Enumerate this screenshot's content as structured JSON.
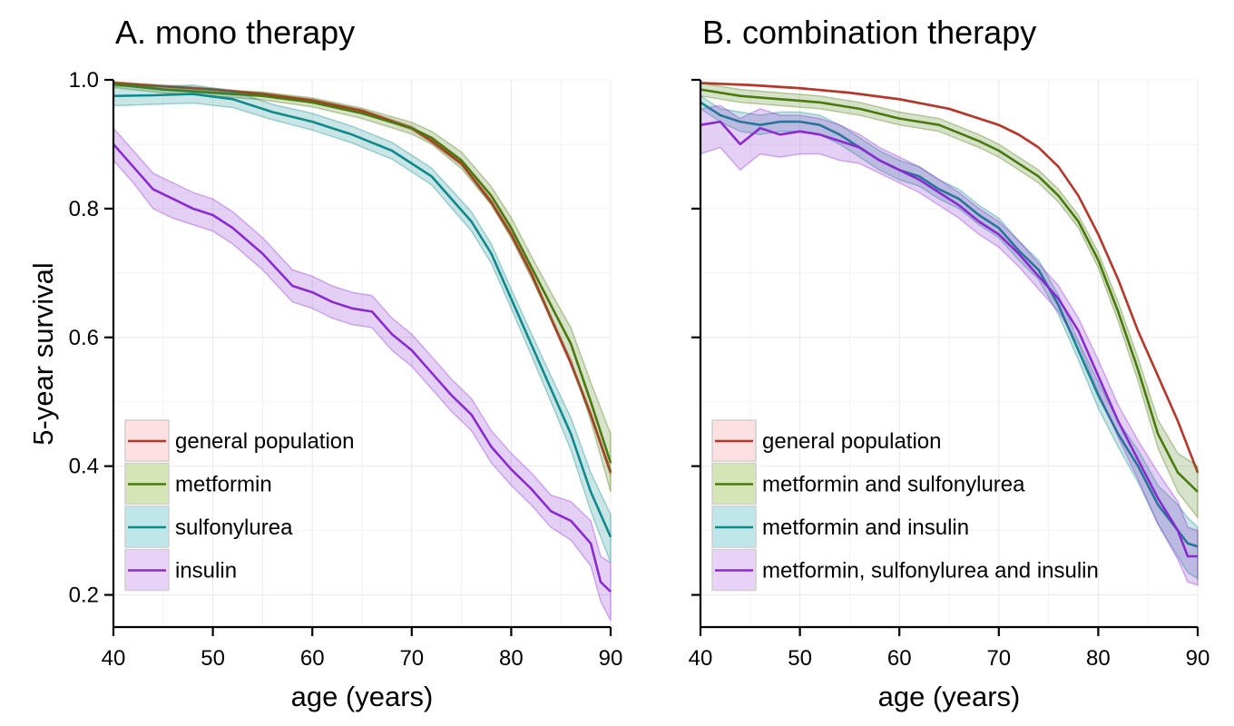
{
  "ylabel": "5-year survival",
  "chart_data": [
    {
      "type": "line",
      "title": "A. mono therapy",
      "xlabel": "age (years)",
      "ylabel": "5-year survival",
      "xlim": [
        40,
        90
      ],
      "ylim": [
        0.15,
        1.0
      ],
      "xticks": [
        40,
        50,
        60,
        70,
        80,
        90
      ],
      "yticks": [
        0.2,
        0.4,
        0.6,
        0.8,
        1.0
      ],
      "ytick_labels": [
        "0.2",
        "0.4",
        "0.6",
        "0.8",
        "1.0"
      ],
      "grid": true,
      "legend_position": "bottom-left",
      "series": [
        {
          "name": "general population",
          "color": "#B5372A",
          "fill": "#FDE0E0",
          "x": [
            40,
            45,
            50,
            55,
            60,
            65,
            70,
            72,
            75,
            78,
            80,
            82,
            84,
            86,
            88,
            90
          ],
          "y": [
            0.995,
            0.99,
            0.985,
            0.978,
            0.968,
            0.952,
            0.925,
            0.905,
            0.87,
            0.81,
            0.76,
            0.7,
            0.63,
            0.56,
            0.48,
            0.39
          ],
          "lower": [
            0.993,
            0.988,
            0.983,
            0.976,
            0.966,
            0.95,
            0.922,
            0.902,
            0.867,
            0.806,
            0.756,
            0.696,
            0.626,
            0.556,
            0.476,
            0.386
          ],
          "upper": [
            0.997,
            0.992,
            0.987,
            0.98,
            0.97,
            0.954,
            0.928,
            0.908,
            0.873,
            0.814,
            0.764,
            0.704,
            0.634,
            0.564,
            0.484,
            0.394
          ]
        },
        {
          "name": "metformin",
          "color": "#4A7A0C",
          "fill": "#D6E5B5",
          "x": [
            40,
            45,
            50,
            55,
            60,
            65,
            70,
            72,
            75,
            78,
            80,
            82,
            84,
            86,
            88,
            90
          ],
          "y": [
            0.993,
            0.985,
            0.98,
            0.975,
            0.965,
            0.948,
            0.925,
            0.91,
            0.875,
            0.82,
            0.77,
            0.71,
            0.65,
            0.59,
            0.5,
            0.405
          ],
          "lower": [
            0.988,
            0.98,
            0.975,
            0.969,
            0.958,
            0.94,
            0.916,
            0.9,
            0.862,
            0.806,
            0.754,
            0.693,
            0.63,
            0.565,
            0.47,
            0.36
          ],
          "upper": [
            0.997,
            0.99,
            0.985,
            0.981,
            0.972,
            0.956,
            0.934,
            0.92,
            0.888,
            0.834,
            0.786,
            0.727,
            0.67,
            0.615,
            0.53,
            0.45
          ]
        },
        {
          "name": "sulfonylurea",
          "color": "#0F8A8C",
          "fill": "#BFE7EA",
          "x": [
            40,
            44,
            48,
            52,
            56,
            60,
            64,
            68,
            72,
            76,
            78,
            80,
            82,
            84,
            86,
            88,
            90
          ],
          "y": [
            0.975,
            0.976,
            0.978,
            0.97,
            0.95,
            0.935,
            0.915,
            0.89,
            0.85,
            0.78,
            0.73,
            0.66,
            0.59,
            0.52,
            0.45,
            0.36,
            0.29
          ],
          "lower": [
            0.96,
            0.962,
            0.964,
            0.957,
            0.938,
            0.922,
            0.902,
            0.877,
            0.837,
            0.765,
            0.715,
            0.645,
            0.573,
            0.5,
            0.425,
            0.33,
            0.25
          ],
          "upper": [
            0.99,
            0.99,
            0.992,
            0.983,
            0.962,
            0.948,
            0.928,
            0.903,
            0.863,
            0.795,
            0.745,
            0.675,
            0.607,
            0.54,
            0.475,
            0.39,
            0.325
          ]
        },
        {
          "name": "insulin",
          "color": "#8A2BD0",
          "fill": "#E9D2F7",
          "x": [
            40,
            42,
            44,
            46,
            48,
            50,
            52,
            55,
            58,
            60,
            62,
            64,
            66,
            68,
            70,
            72,
            74,
            76,
            78,
            80,
            82,
            84,
            86,
            88,
            89,
            90
          ],
          "y": [
            0.9,
            0.865,
            0.83,
            0.815,
            0.8,
            0.79,
            0.77,
            0.73,
            0.68,
            0.67,
            0.655,
            0.645,
            0.64,
            0.605,
            0.58,
            0.545,
            0.51,
            0.48,
            0.43,
            0.395,
            0.365,
            0.33,
            0.315,
            0.28,
            0.22,
            0.205
          ],
          "lower": [
            0.875,
            0.84,
            0.8,
            0.785,
            0.775,
            0.765,
            0.745,
            0.705,
            0.655,
            0.645,
            0.63,
            0.62,
            0.615,
            0.58,
            0.555,
            0.52,
            0.485,
            0.455,
            0.405,
            0.37,
            0.34,
            0.305,
            0.285,
            0.245,
            0.19,
            0.16
          ],
          "upper": [
            0.925,
            0.89,
            0.855,
            0.84,
            0.825,
            0.815,
            0.795,
            0.755,
            0.705,
            0.695,
            0.68,
            0.67,
            0.665,
            0.63,
            0.605,
            0.57,
            0.535,
            0.505,
            0.455,
            0.42,
            0.39,
            0.355,
            0.345,
            0.315,
            0.26,
            0.25
          ]
        }
      ]
    },
    {
      "type": "line",
      "title": "B. combination therapy",
      "xlabel": "age (years)",
      "ylabel": "",
      "xlim": [
        40,
        90
      ],
      "ylim": [
        0.15,
        1.0
      ],
      "xticks": [
        40,
        50,
        60,
        70,
        80,
        90
      ],
      "yticks": [
        0.2,
        0.4,
        0.6,
        0.8,
        1.0
      ],
      "ytick_labels": [],
      "grid": true,
      "legend_position": "bottom-left",
      "series": [
        {
          "name": "general population",
          "color": "#B5372A",
          "fill": "#FDE0E0",
          "x": [
            40,
            45,
            50,
            55,
            60,
            65,
            70,
            72,
            74,
            76,
            78,
            80,
            82,
            84,
            86,
            88,
            90
          ],
          "y": [
            0.995,
            0.992,
            0.987,
            0.98,
            0.97,
            0.955,
            0.93,
            0.915,
            0.895,
            0.865,
            0.82,
            0.76,
            0.69,
            0.61,
            0.54,
            0.47,
            0.39
          ],
          "lower": [
            0.994,
            0.991,
            0.986,
            0.979,
            0.969,
            0.954,
            0.929,
            0.914,
            0.894,
            0.864,
            0.819,
            0.759,
            0.689,
            0.609,
            0.539,
            0.469,
            0.389
          ],
          "upper": [
            0.996,
            0.993,
            0.988,
            0.981,
            0.971,
            0.956,
            0.931,
            0.916,
            0.896,
            0.866,
            0.821,
            0.761,
            0.691,
            0.611,
            0.541,
            0.471,
            0.391
          ]
        },
        {
          "name": "metformin and sulfonylurea",
          "color": "#4A7A0C",
          "fill": "#D6E5B5",
          "x": [
            40,
            44,
            48,
            52,
            56,
            60,
            64,
            68,
            70,
            72,
            74,
            76,
            78,
            80,
            82,
            84,
            86,
            88,
            90
          ],
          "y": [
            0.985,
            0.975,
            0.97,
            0.965,
            0.955,
            0.94,
            0.93,
            0.905,
            0.89,
            0.87,
            0.85,
            0.82,
            0.78,
            0.72,
            0.64,
            0.55,
            0.45,
            0.39,
            0.36
          ],
          "lower": [
            0.975,
            0.965,
            0.96,
            0.955,
            0.945,
            0.93,
            0.92,
            0.895,
            0.88,
            0.86,
            0.84,
            0.81,
            0.77,
            0.708,
            0.625,
            0.532,
            0.428,
            0.36,
            0.32
          ],
          "upper": [
            0.995,
            0.985,
            0.98,
            0.975,
            0.965,
            0.95,
            0.94,
            0.915,
            0.9,
            0.88,
            0.86,
            0.83,
            0.79,
            0.732,
            0.655,
            0.568,
            0.472,
            0.42,
            0.4
          ]
        },
        {
          "name": "metformin and insulin",
          "color": "#0F8A8C",
          "fill": "#BFE7EA",
          "x": [
            40,
            42,
            44,
            46,
            48,
            50,
            52,
            54,
            56,
            58,
            60,
            62,
            64,
            66,
            68,
            70,
            72,
            74,
            76,
            78,
            80,
            82,
            84,
            86,
            88,
            89,
            90
          ],
          "y": [
            0.965,
            0.945,
            0.935,
            0.93,
            0.935,
            0.935,
            0.93,
            0.915,
            0.895,
            0.875,
            0.86,
            0.85,
            0.83,
            0.815,
            0.79,
            0.77,
            0.735,
            0.705,
            0.65,
            0.58,
            0.51,
            0.45,
            0.4,
            0.34,
            0.3,
            0.28,
            0.275
          ],
          "lower": [
            0.955,
            0.935,
            0.92,
            0.915,
            0.92,
            0.92,
            0.915,
            0.9,
            0.88,
            0.86,
            0.845,
            0.835,
            0.815,
            0.8,
            0.775,
            0.755,
            0.72,
            0.69,
            0.635,
            0.565,
            0.49,
            0.43,
            0.375,
            0.31,
            0.26,
            0.235,
            0.225
          ],
          "upper": [
            0.975,
            0.955,
            0.95,
            0.945,
            0.95,
            0.95,
            0.945,
            0.93,
            0.91,
            0.89,
            0.875,
            0.865,
            0.845,
            0.83,
            0.805,
            0.785,
            0.75,
            0.72,
            0.665,
            0.595,
            0.53,
            0.47,
            0.425,
            0.37,
            0.34,
            0.32,
            0.305
          ]
        },
        {
          "name": "metformin, sulfonylurea and insulin",
          "color": "#8A2BD0",
          "fill": "#E9D2F7",
          "x": [
            40,
            42,
            44,
            46,
            48,
            50,
            52,
            54,
            56,
            58,
            60,
            62,
            64,
            66,
            68,
            70,
            72,
            74,
            76,
            78,
            80,
            82,
            84,
            86,
            88,
            89,
            90
          ],
          "y": [
            0.93,
            0.935,
            0.9,
            0.925,
            0.915,
            0.92,
            0.915,
            0.905,
            0.895,
            0.875,
            0.86,
            0.845,
            0.825,
            0.805,
            0.78,
            0.76,
            0.73,
            0.695,
            0.66,
            0.61,
            0.54,
            0.47,
            0.41,
            0.35,
            0.3,
            0.26,
            0.26
          ],
          "lower": [
            0.885,
            0.895,
            0.86,
            0.885,
            0.88,
            0.885,
            0.885,
            0.875,
            0.87,
            0.855,
            0.84,
            0.825,
            0.805,
            0.785,
            0.76,
            0.74,
            0.71,
            0.675,
            0.64,
            0.59,
            0.515,
            0.445,
            0.38,
            0.31,
            0.255,
            0.22,
            0.215
          ],
          "upper": [
            0.955,
            0.96,
            0.94,
            0.955,
            0.945,
            0.945,
            0.94,
            0.93,
            0.915,
            0.895,
            0.88,
            0.865,
            0.845,
            0.825,
            0.8,
            0.78,
            0.75,
            0.715,
            0.68,
            0.63,
            0.565,
            0.495,
            0.44,
            0.39,
            0.345,
            0.305,
            0.3
          ]
        }
      ]
    }
  ]
}
